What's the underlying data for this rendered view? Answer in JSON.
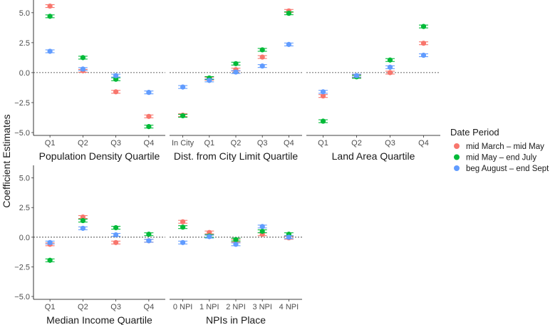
{
  "chart_data": {
    "type": "scatter",
    "ylabel": "Coefficient Estimates",
    "ylim": [
      -5,
      6
    ],
    "yticks": [
      -5.0,
      -2.5,
      0.0,
      2.5,
      5.0
    ],
    "ytick_labels": [
      "−5.0",
      "−2.5",
      "0.0",
      "2.5",
      "5.0"
    ],
    "reference_line": 0,
    "legend": {
      "title": "Date Period",
      "placement": "right",
      "items": [
        {
          "name": "mid March – mid May",
          "color": "#F8766D"
        },
        {
          "name": "mid May – end July",
          "color": "#00BA38"
        },
        {
          "name": "beg August – end Sept",
          "color": "#619CFF"
        }
      ]
    },
    "facets": [
      {
        "title": "Population Density Quartile",
        "categories": [
          "Q1",
          "Q2",
          "Q3",
          "Q4"
        ],
        "series": [
          {
            "name": "mid March – mid May",
            "values": [
              5.55,
              0.15,
              -1.6,
              -3.65
            ]
          },
          {
            "name": "mid May – end July",
            "values": [
              4.7,
              1.25,
              -0.55,
              -4.5
            ]
          },
          {
            "name": "beg August – end Sept",
            "values": [
              1.78,
              0.3,
              -0.25,
              -1.65
            ]
          }
        ]
      },
      {
        "title": "Dist. from City Limit Quartile",
        "categories": [
          "In City",
          "Q1",
          "Q2",
          "Q3",
          "Q4"
        ],
        "series": [
          {
            "name": "mid March – mid May",
            "values": [
              -3.55,
              -0.5,
              0.25,
              1.3,
              5.15
            ]
          },
          {
            "name": "mid May – end July",
            "values": [
              -3.6,
              -0.45,
              0.75,
              1.9,
              4.95
            ]
          },
          {
            "name": "beg August – end Sept",
            "values": [
              -1.2,
              -0.65,
              0.05,
              0.55,
              2.35
            ]
          }
        ]
      },
      {
        "title": "Land Area Quartile",
        "categories": [
          "Q1",
          "Q2",
          "Q3",
          "Q4"
        ],
        "series": [
          {
            "name": "mid March – mid May",
            "values": [
              -1.95,
              -0.3,
              0.0,
              2.45
            ]
          },
          {
            "name": "mid May – end July",
            "values": [
              -4.05,
              -0.35,
              1.05,
              3.85
            ]
          },
          {
            "name": "beg August – end Sept",
            "values": [
              -1.6,
              -0.25,
              0.45,
              1.45
            ]
          }
        ]
      },
      {
        "title": "Median Income Quartile",
        "categories": [
          "Q1",
          "Q2",
          "Q3",
          "Q4"
        ],
        "series": [
          {
            "name": "mid March – mid May",
            "values": [
              -0.6,
              1.7,
              -0.45,
              -0.3
            ]
          },
          {
            "name": "mid May – end July",
            "values": [
              -1.95,
              1.4,
              0.8,
              0.25
            ]
          },
          {
            "name": "beg August – end Sept",
            "values": [
              -0.45,
              0.75,
              0.2,
              -0.3
            ]
          }
        ]
      },
      {
        "title": "NPIs in Place",
        "categories": [
          "0 NPI",
          "1 NPI",
          "2 NPI",
          "3 NPI",
          "4 NPI"
        ],
        "series": [
          {
            "name": "mid March – mid May",
            "values": [
              1.3,
              0.4,
              -0.3,
              0.25,
              -0.05
            ]
          },
          {
            "name": "mid May – end July",
            "values": [
              0.85,
              0.1,
              -0.2,
              0.5,
              0.25
            ]
          },
          {
            "name": "beg August – end Sept",
            "values": [
              -0.45,
              0.05,
              -0.6,
              0.9,
              0.0
            ]
          }
        ]
      }
    ]
  }
}
